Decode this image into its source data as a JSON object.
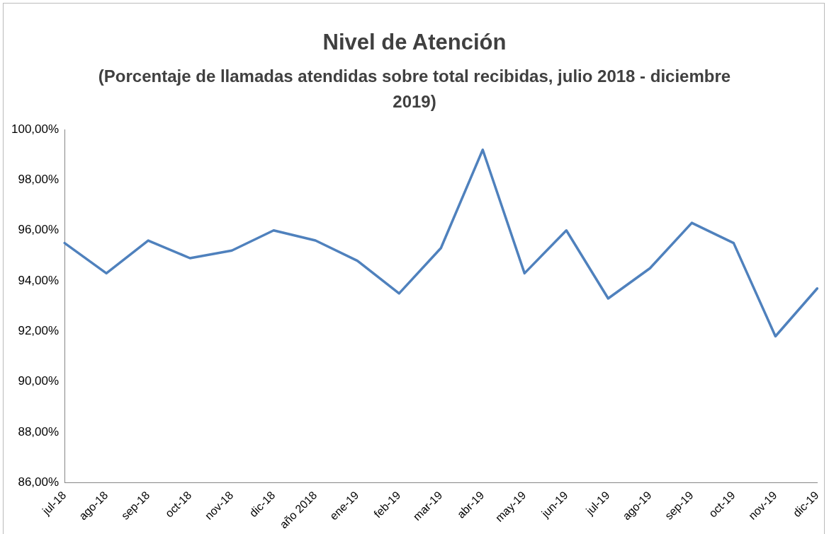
{
  "chart_data": {
    "type": "line",
    "title": "Nivel de Atención",
    "subtitle": "(Porcentaje de llamadas atendidas sobre total recibidas, julio 2018 - diciembre 2019)",
    "categories": [
      "jul-18",
      "ago-18",
      "sep-18",
      "oct-18",
      "nov-18",
      "dic-18",
      "año 2018",
      "ene-19",
      "feb-19",
      "mar-19",
      "abr-19",
      "may-19",
      "jun-19",
      "jul-19",
      "ago-19",
      "sep-19",
      "oct-19",
      "nov-19",
      "dic-19"
    ],
    "series": [
      {
        "color": "#4f81bd",
        "values": [
          95.5,
          94.3,
          95.6,
          94.9,
          95.2,
          96.0,
          95.6,
          94.8,
          93.5,
          95.3,
          99.2,
          94.3,
          96.0,
          93.3,
          94.5,
          96.3,
          95.5,
          91.8,
          93.7
        ]
      }
    ],
    "ylim": [
      86,
      100
    ],
    "yticks": [
      {
        "value": 86,
        "label": "86,00%"
      },
      {
        "value": 88,
        "label": "88,00%"
      },
      {
        "value": 90,
        "label": "90,00%"
      },
      {
        "value": 92,
        "label": "92,00%"
      },
      {
        "value": 94,
        "label": "94,00%"
      },
      {
        "value": 96,
        "label": "96,00%"
      },
      {
        "value": 98,
        "label": "98,00%"
      },
      {
        "value": 100,
        "label": "100,00%"
      }
    ],
    "grid": false,
    "legend": false,
    "marker": "none",
    "line_style": "solid"
  }
}
